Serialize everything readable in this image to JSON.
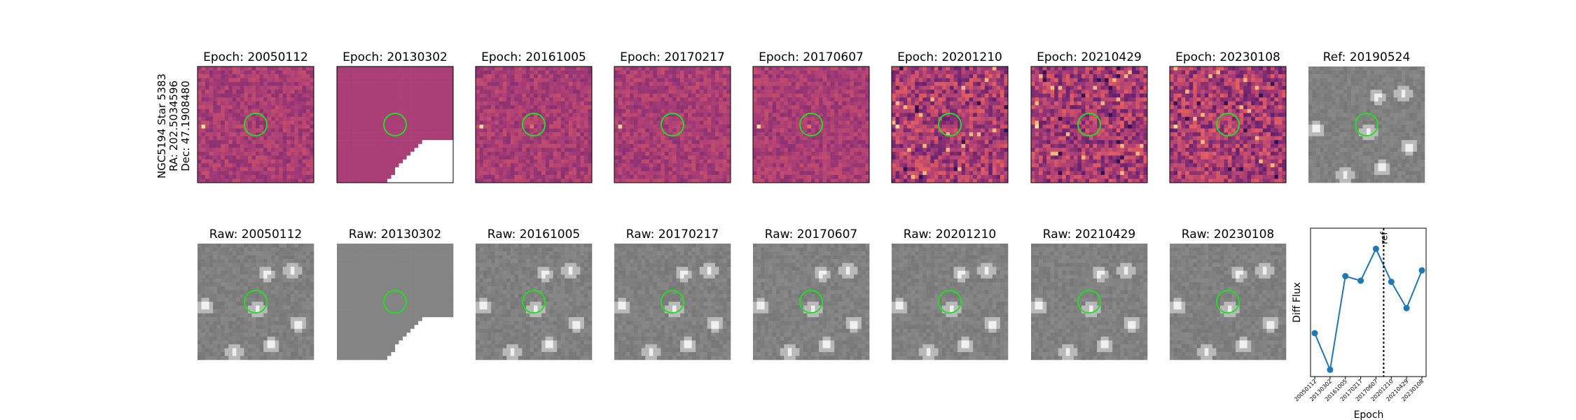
{
  "figure": {
    "side_label": [
      "NGC5194 Star 5383",
      "RA: 202.5034596",
      "Dec: 47.1908480"
    ]
  },
  "top_row": [
    {
      "title": "Epoch: 20050112",
      "kind": "diff",
      "variant": 0
    },
    {
      "title": "Epoch: 20130302",
      "kind": "diff",
      "variant": 1
    },
    {
      "title": "Epoch: 20161005",
      "kind": "diff",
      "variant": 2
    },
    {
      "title": "Epoch: 20170217",
      "kind": "diff",
      "variant": 3
    },
    {
      "title": "Epoch: 20170607",
      "kind": "diff",
      "variant": 4
    },
    {
      "title": "Epoch: 20201210",
      "kind": "diff",
      "variant": 5
    },
    {
      "title": "Epoch: 20210429",
      "kind": "diff",
      "variant": 6
    },
    {
      "title": "Epoch: 20230108",
      "kind": "diff",
      "variant": 7
    },
    {
      "title": "Ref: 20190524",
      "kind": "raw",
      "variant": 8
    }
  ],
  "bottom_row": [
    {
      "title": "Raw: 20050112",
      "kind": "raw",
      "variant": 0
    },
    {
      "title": "Raw: 20130302",
      "kind": "raw",
      "variant": 1
    },
    {
      "title": "Raw: 20161005",
      "kind": "raw",
      "variant": 2
    },
    {
      "title": "Raw: 20170217",
      "kind": "raw",
      "variant": 3
    },
    {
      "title": "Raw: 20170607",
      "kind": "raw",
      "variant": 4
    },
    {
      "title": "Raw: 20201210",
      "kind": "raw",
      "variant": 5
    },
    {
      "title": "Raw: 20210429",
      "kind": "raw",
      "variant": 6
    },
    {
      "title": "Raw: 20230108",
      "kind": "raw",
      "variant": 7
    }
  ],
  "colors": {
    "diff_base": "#a53e76",
    "raw_base": "#8a8a8a",
    "circle": "#22dd22",
    "series": "#1f77b4"
  },
  "chart_data": {
    "type": "line",
    "xlabel": "Epoch",
    "ylabel": "Diff Flux",
    "categories": [
      "20050112",
      "20130302",
      "20161005",
      "20170217",
      "20170607",
      "20201210",
      "20210429",
      "20230108"
    ],
    "values": [
      0.38,
      0.06,
      0.88,
      0.84,
      1.12,
      0.83,
      0.6,
      0.93
    ],
    "ylim": [
      0,
      1.3
    ],
    "reference_line": {
      "label": "ref",
      "position": 4.5
    },
    "grid": false
  }
}
